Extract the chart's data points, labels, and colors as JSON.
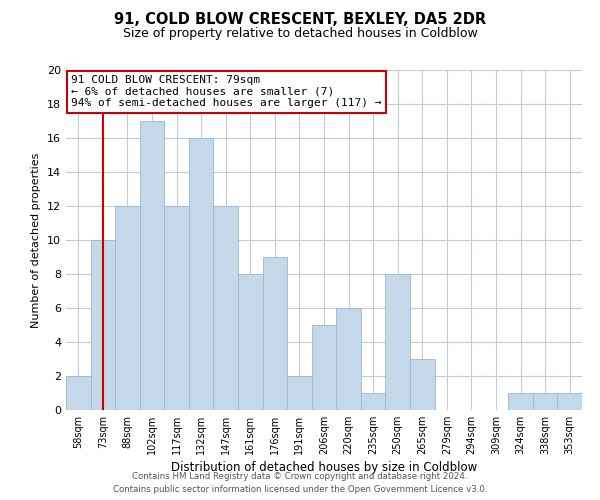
{
  "title": "91, COLD BLOW CRESCENT, BEXLEY, DA5 2DR",
  "subtitle": "Size of property relative to detached houses in Coldblow",
  "xlabel": "Distribution of detached houses by size in Coldblow",
  "ylabel": "Number of detached properties",
  "bin_labels": [
    "58sqm",
    "73sqm",
    "88sqm",
    "102sqm",
    "117sqm",
    "132sqm",
    "147sqm",
    "161sqm",
    "176sqm",
    "191sqm",
    "206sqm",
    "220sqm",
    "235sqm",
    "250sqm",
    "265sqm",
    "279sqm",
    "294sqm",
    "309sqm",
    "324sqm",
    "338sqm",
    "353sqm"
  ],
  "bar_heights": [
    2,
    10,
    12,
    17,
    12,
    16,
    12,
    8,
    9,
    2,
    5,
    6,
    1,
    8,
    3,
    0,
    0,
    0,
    1,
    1,
    1
  ],
  "bar_color": "#c5d8ea",
  "highlight_color": "#cc0000",
  "red_line_x": 1.0,
  "ylim": [
    0,
    20
  ],
  "yticks": [
    0,
    2,
    4,
    6,
    8,
    10,
    12,
    14,
    16,
    18,
    20
  ],
  "annotation_title": "91 COLD BLOW CRESCENT: 79sqm",
  "annotation_line1": "← 6% of detached houses are smaller (7)",
  "annotation_line2": "94% of semi-detached houses are larger (117) →",
  "footer_line1": "Contains HM Land Registry data © Crown copyright and database right 2024.",
  "footer_line2": "Contains public sector information licensed under the Open Government Licence v3.0.",
  "background_color": "#ffffff",
  "grid_color": "#c0ccd8"
}
